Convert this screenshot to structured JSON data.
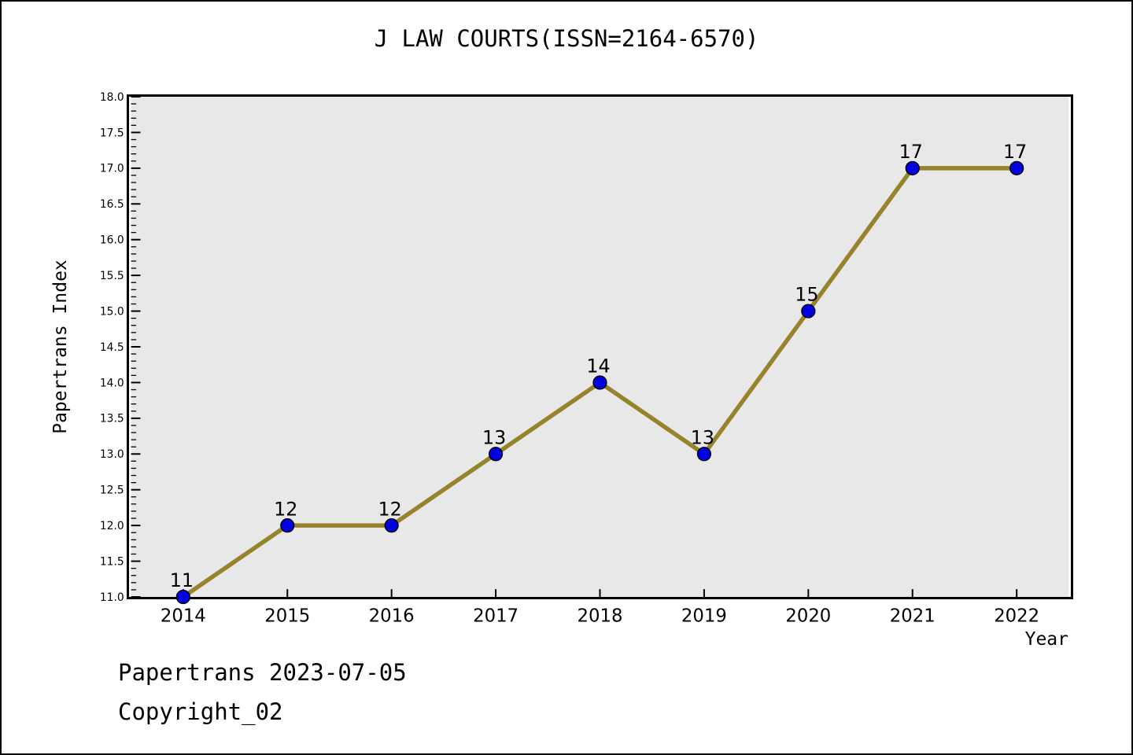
{
  "title": "J LAW COURTS(ISSN=2164-6570)",
  "footer": {
    "line1": "Papertrans 2023-07-05",
    "line2": "Copyright_02"
  },
  "chart_data": {
    "type": "line",
    "title": "J LAW COURTS(ISSN=2164-6570)",
    "xlabel": "Year",
    "ylabel": "Papertrans Index",
    "x": [
      2014,
      2015,
      2016,
      2017,
      2018,
      2019,
      2020,
      2021,
      2022
    ],
    "values": [
      11,
      12,
      12,
      13,
      14,
      13,
      15,
      17,
      17
    ],
    "point_labels": [
      "11",
      "12",
      "12",
      "13",
      "14",
      "13",
      "15",
      "17",
      "17"
    ],
    "x_tick_labels": [
      "2014",
      "2015",
      "2016",
      "2017",
      "2018",
      "2019",
      "2020",
      "2021",
      "2022"
    ],
    "xlim": [
      2013.5,
      2022.5
    ],
    "ylim": [
      11.0,
      18.0
    ],
    "y_major_step": 0.5,
    "y_minor_step": 0.1,
    "grid": false,
    "legend": null,
    "colors": {
      "line": "#97832b",
      "marker_fill": "#0000e0",
      "marker_edge": "#000000",
      "plot_bg": "#e8e8e8",
      "figure_bg": "#ffffff",
      "text": "#000000",
      "spine": "#000000"
    }
  }
}
